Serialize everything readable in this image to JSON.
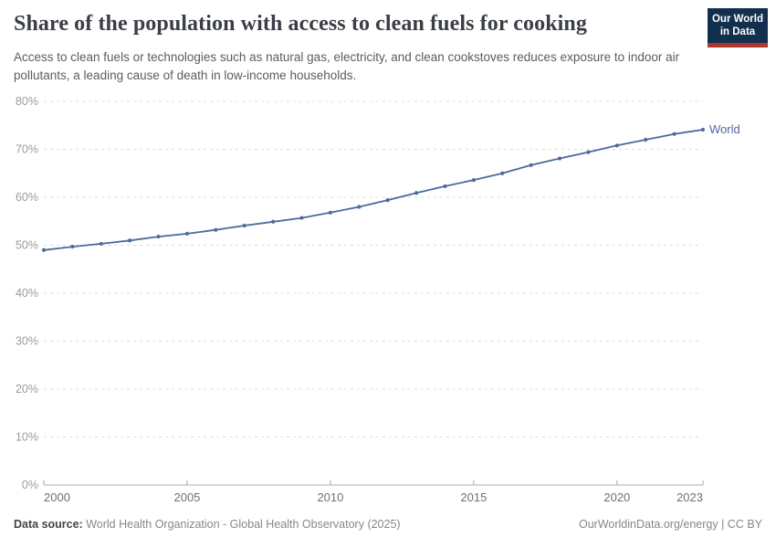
{
  "header": {
    "title": "Share of the population with access to clean fuels for cooking",
    "subtitle": "Access to clean fuels or technologies such as natural gas, electricity, and clean cookstoves reduces exposure to indoor air pollutants, a leading cause of death in low-income households.",
    "logo": {
      "line1": "Our World",
      "line2": "in Data"
    }
  },
  "chart_data": {
    "type": "line",
    "title": "Share of the population with access to clean fuels for cooking",
    "grid": "horizontal-dashed",
    "legend_position": "end-of-line-label",
    "xlim": [
      2000,
      2023
    ],
    "ylim": [
      0,
      80
    ],
    "yticks": [
      0,
      10,
      20,
      30,
      40,
      50,
      60,
      70,
      80
    ],
    "ytick_suffix": "%",
    "xticks": [
      2000,
      2005,
      2010,
      2015,
      2020,
      2023
    ],
    "series": [
      {
        "name": "World",
        "color": "#4c6a9c",
        "x": [
          2000,
          2001,
          2002,
          2003,
          2004,
          2005,
          2006,
          2007,
          2008,
          2009,
          2010,
          2011,
          2012,
          2013,
          2014,
          2015,
          2016,
          2017,
          2018,
          2019,
          2020,
          2021,
          2022,
          2023
        ],
        "values": [
          49.0,
          49.7,
          50.3,
          51.0,
          51.8,
          52.4,
          53.2,
          54.1,
          54.9,
          55.7,
          56.8,
          58.0,
          59.4,
          60.9,
          62.3,
          63.6,
          65.0,
          66.7,
          68.1,
          69.4,
          70.8,
          72.0,
          73.2,
          74.1
        ]
      }
    ]
  },
  "footer": {
    "source_label": "Data source:",
    "source_text": " World Health Organization - Global Health Observatory (2025)",
    "credit": "OurWorldinData.org/energy | CC BY"
  },
  "colors": {
    "line": "#4c6a9c",
    "gridline": "#dcdcdc",
    "axis": "#a8a8a8",
    "logo_bg": "#12304e",
    "logo_bar": "#b0352e"
  }
}
